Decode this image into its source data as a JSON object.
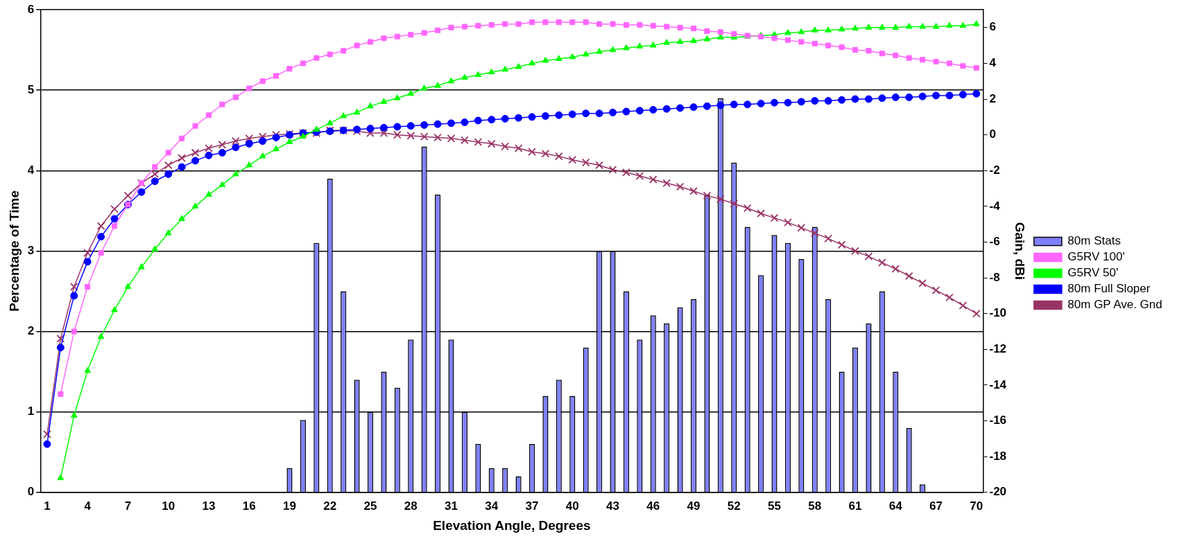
{
  "chart_data": {
    "type": "bar",
    "xlabel": "Elevation Angle, Degrees",
    "ylabel": "Percentage of Time",
    "y2label": "Gain, dBi",
    "categories": [
      "1",
      null,
      null,
      "4",
      null,
      null,
      "7",
      null,
      null,
      "10",
      null,
      null,
      "13",
      null,
      null,
      "16",
      null,
      null,
      "19",
      null,
      null,
      "22",
      null,
      null,
      "25",
      null,
      null,
      "28",
      null,
      null,
      "31",
      null,
      null,
      "34",
      null,
      null,
      "37",
      null,
      null,
      "40",
      null,
      null,
      "43",
      null,
      null,
      "46",
      null,
      null,
      "49",
      null,
      null,
      "52",
      null,
      null,
      "55",
      null,
      null,
      "58",
      null,
      null,
      "61",
      null,
      null,
      "64",
      null,
      null,
      "67",
      null,
      null,
      "70"
    ],
    "ylim": [
      0,
      6
    ],
    "yticks": [
      0,
      1,
      2,
      3,
      4,
      5,
      6
    ],
    "y2lim": [
      -20,
      7
    ],
    "y2ticks": [
      -20,
      -18,
      -16,
      -14,
      -12,
      -10,
      -8,
      -6,
      -4,
      -2,
      0,
      2,
      4,
      6
    ],
    "grid": "y",
    "legend": "right",
    "series": [
      {
        "name": "80m Stats",
        "color": "#8080ff",
        "values": [
          0,
          0,
          0,
          0,
          0,
          0,
          0,
          0,
          0,
          0,
          0,
          0,
          0,
          0,
          0,
          0,
          0,
          0,
          0.3,
          0.9,
          3.1,
          3.9,
          2.5,
          1.4,
          1.0,
          1.5,
          1.3,
          1.9,
          4.3,
          3.7,
          1.9,
          1.0,
          0.6,
          0.3,
          0.3,
          0.2,
          0.6,
          1.2,
          1.4,
          1.2,
          1.8,
          3.0,
          3.0,
          2.5,
          1.9,
          2.2,
          2.1,
          2.3,
          2.4,
          3.7,
          4.9,
          4.1,
          3.3,
          2.7,
          3.2,
          3.1,
          2.9,
          3.3,
          2.4,
          1.5,
          1.8,
          2.1,
          2.5,
          1.5,
          0.8,
          0.1,
          0,
          0,
          0,
          0
        ]
      },
      {
        "type": "line",
        "axis": "y2",
        "marker": "square",
        "name": "G5RV 100'",
        "color": "#ff66ff",
        "values": [
          null,
          -14.5,
          -11.0,
          -8.5,
          -6.6,
          -5.1,
          -3.9,
          -2.7,
          -1.8,
          -1.0,
          -0.2,
          0.5,
          1.1,
          1.7,
          2.1,
          2.6,
          3.0,
          3.3,
          3.7,
          4.0,
          4.3,
          4.5,
          4.7,
          5.0,
          5.2,
          5.4,
          5.5,
          5.6,
          5.7,
          5.85,
          6.0,
          6.05,
          6.1,
          6.15,
          6.2,
          6.2,
          6.3,
          6.3,
          6.3,
          6.3,
          6.3,
          6.2,
          6.2,
          6.15,
          6.15,
          6.1,
          6.05,
          6.0,
          5.95,
          5.8,
          5.75,
          5.65,
          5.55,
          5.5,
          5.4,
          5.3,
          5.2,
          5.1,
          5.0,
          4.9,
          4.75,
          4.7,
          4.55,
          4.45,
          4.3,
          4.2,
          4.1,
          4.0,
          3.85,
          3.75
        ]
      },
      {
        "type": "line",
        "axis": "y2",
        "marker": "triangle",
        "name": "G5RV 50'",
        "color": "#00ff00",
        "values": [
          null,
          -19.2,
          -15.7,
          -13.2,
          -11.3,
          -9.8,
          -8.5,
          -7.4,
          -6.4,
          -5.5,
          -4.7,
          -4.0,
          -3.35,
          -2.8,
          -2.2,
          -1.7,
          -1.2,
          -0.8,
          -0.4,
          -0.1,
          0.3,
          0.65,
          1.05,
          1.25,
          1.6,
          1.85,
          2.05,
          2.3,
          2.6,
          2.75,
          3.0,
          3.2,
          3.35,
          3.5,
          3.65,
          3.8,
          4.0,
          4.15,
          4.25,
          4.35,
          4.5,
          4.65,
          4.75,
          4.85,
          4.95,
          5.0,
          5.15,
          5.2,
          5.25,
          5.35,
          5.45,
          5.45,
          5.5,
          5.55,
          5.6,
          5.7,
          5.75,
          5.85,
          5.85,
          5.9,
          5.95,
          6.0,
          6.0,
          6.0,
          6.05,
          6.05,
          6.05,
          6.1,
          6.1,
          6.2
        ]
      },
      {
        "type": "line",
        "axis": "y2",
        "marker": "circle",
        "name": "80m Full Sloper",
        "color": "#0000ff",
        "values": [
          -17.3,
          -11.9,
          -9.0,
          -7.1,
          -5.7,
          -4.7,
          -3.9,
          -3.2,
          -2.6,
          -2.2,
          -1.8,
          -1.45,
          -1.15,
          -1.0,
          -0.7,
          -0.5,
          -0.35,
          -0.15,
          0.0,
          0.1,
          0.15,
          0.2,
          0.25,
          0.3,
          0.35,
          0.4,
          0.45,
          0.5,
          0.55,
          0.6,
          0.65,
          0.7,
          0.8,
          0.85,
          0.9,
          0.95,
          1.0,
          1.05,
          1.1,
          1.15,
          1.2,
          1.2,
          1.25,
          1.3,
          1.35,
          1.4,
          1.45,
          1.5,
          1.55,
          1.6,
          1.65,
          1.7,
          1.7,
          1.75,
          1.8,
          1.8,
          1.85,
          1.9,
          1.9,
          1.95,
          2.0,
          2.0,
          2.05,
          2.1,
          2.1,
          2.15,
          2.2,
          2.2,
          2.25,
          2.3
        ]
      },
      {
        "type": "line",
        "axis": "y2",
        "marker": "cross",
        "name": "80m GP Ave. Gnd",
        "color": "#993366",
        "values": [
          -16.75,
          -11.4,
          -8.5,
          -6.6,
          -5.1,
          -4.15,
          -3.4,
          -2.7,
          -2.2,
          -1.7,
          -1.3,
          -1.0,
          -0.75,
          -0.55,
          -0.35,
          -0.2,
          -0.1,
          0.0,
          0.05,
          0.1,
          0.1,
          0.25,
          0.25,
          0.2,
          0.1,
          0.1,
          0.0,
          -0.05,
          -0.1,
          -0.15,
          -0.2,
          -0.3,
          -0.4,
          -0.5,
          -0.65,
          -0.75,
          -0.95,
          -1.05,
          -1.2,
          -1.4,
          -1.55,
          -1.7,
          -1.95,
          -2.1,
          -2.3,
          -2.5,
          -2.7,
          -2.9,
          -3.15,
          -3.4,
          -3.6,
          -3.85,
          -4.1,
          -4.4,
          -4.65,
          -4.9,
          -5.2,
          -5.5,
          -5.8,
          -6.15,
          -6.5,
          -6.8,
          -7.15,
          -7.5,
          -7.9,
          -8.3,
          -8.7,
          -9.1,
          -9.55,
          -10.0
        ]
      }
    ]
  }
}
